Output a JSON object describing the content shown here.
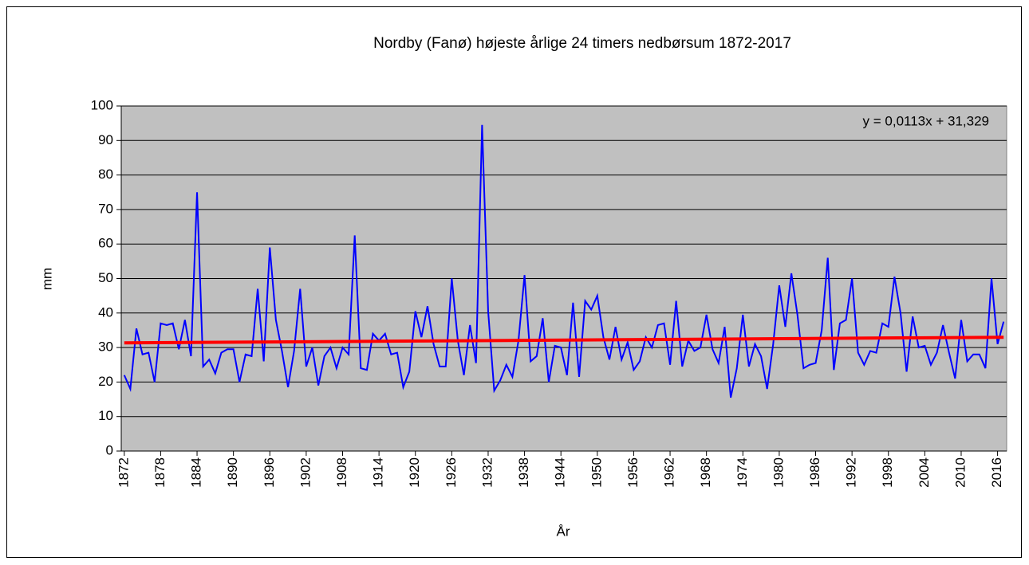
{
  "chart_data": {
    "type": "line",
    "title": "Nordby (Fanø) højeste årlige 24 timers nedbørsum 1872-2017",
    "y_label": "mm",
    "x_label": "År",
    "x": [
      1872,
      1873,
      1874,
      1875,
      1876,
      1877,
      1878,
      1879,
      1880,
      1881,
      1882,
      1883,
      1884,
      1885,
      1886,
      1887,
      1888,
      1889,
      1890,
      1891,
      1892,
      1893,
      1894,
      1895,
      1896,
      1897,
      1898,
      1899,
      1900,
      1901,
      1902,
      1903,
      1904,
      1905,
      1906,
      1907,
      1908,
      1909,
      1910,
      1911,
      1912,
      1913,
      1914,
      1915,
      1916,
      1917,
      1918,
      1919,
      1920,
      1921,
      1922,
      1923,
      1924,
      1925,
      1926,
      1927,
      1928,
      1929,
      1930,
      1931,
      1932,
      1933,
      1934,
      1935,
      1936,
      1937,
      1938,
      1939,
      1940,
      1941,
      1942,
      1943,
      1944,
      1945,
      1946,
      1947,
      1948,
      1949,
      1950,
      1951,
      1952,
      1953,
      1954,
      1955,
      1956,
      1957,
      1958,
      1959,
      1960,
      1961,
      1962,
      1963,
      1964,
      1965,
      1966,
      1967,
      1968,
      1969,
      1970,
      1971,
      1972,
      1973,
      1974,
      1975,
      1976,
      1977,
      1978,
      1979,
      1980,
      1981,
      1982,
      1983,
      1984,
      1985,
      1986,
      1987,
      1988,
      1989,
      1990,
      1991,
      1992,
      1993,
      1994,
      1995,
      1996,
      1997,
      1998,
      1999,
      2000,
      2001,
      2002,
      2003,
      2004,
      2005,
      2006,
      2007,
      2008,
      2009,
      2010,
      2011,
      2012,
      2013,
      2014,
      2015,
      2016,
      2017
    ],
    "series": [
      {
        "color": "#0000ff",
        "values": [
          22,
          18,
          35.5,
          28,
          28.5,
          20,
          37,
          36.5,
          37,
          29.5,
          38,
          27.5,
          75,
          24.5,
          26.5,
          22.5,
          28.5,
          29.5,
          29.5,
          20,
          28,
          27.5,
          47,
          26,
          59,
          38,
          29,
          18.5,
          29,
          47,
          24.5,
          30,
          19,
          27.5,
          30,
          24,
          30,
          28,
          62.5,
          24,
          23.5,
          34,
          32,
          34,
          28,
          28.5,
          18.5,
          23,
          40.5,
          33,
          42,
          31,
          24.5,
          24.5,
          50,
          32,
          22,
          36.5,
          25.5,
          94.5,
          40.5,
          17.5,
          20.5,
          25,
          21.5,
          32,
          51,
          26,
          27.5,
          38.5,
          20,
          30.5,
          30,
          22,
          43,
          21.5,
          43.5,
          41,
          45,
          33,
          26.5,
          36,
          26.5,
          31.5,
          23.5,
          26,
          33,
          30,
          36.5,
          37,
          25,
          43.5,
          24.5,
          32,
          29,
          30,
          39.5,
          29.5,
          25.5,
          36,
          15.5,
          24,
          39.5,
          24.5,
          31,
          27.5,
          18,
          31,
          48,
          36,
          51.5,
          39.5,
          24,
          25,
          25.5,
          35,
          56,
          23.5,
          37,
          38,
          50,
          28.5,
          25,
          29,
          28.5,
          37,
          36,
          50.5,
          40,
          23,
          39,
          30,
          30.5,
          25,
          28.5,
          36.5,
          28.5,
          21,
          38,
          26,
          28,
          28,
          24,
          50,
          31,
          37.5
        ]
      }
    ],
    "trendline": {
      "slope": 0.0113,
      "intercept": 31.329,
      "label": "y = 0,0113x + 31,329",
      "color": "#ff0000"
    },
    "xlim": [
      1871.5,
      2017.5
    ],
    "xticks": [
      1872,
      1878,
      1884,
      1890,
      1896,
      1902,
      1908,
      1914,
      1920,
      1926,
      1932,
      1938,
      1944,
      1950,
      1956,
      1962,
      1968,
      1974,
      1980,
      1986,
      1992,
      1998,
      2004,
      2010,
      2016
    ],
    "ylim": [
      0,
      100
    ],
    "yticks": [
      0,
      10,
      20,
      30,
      40,
      50,
      60,
      70,
      80,
      90,
      100
    ],
    "grid": true
  }
}
